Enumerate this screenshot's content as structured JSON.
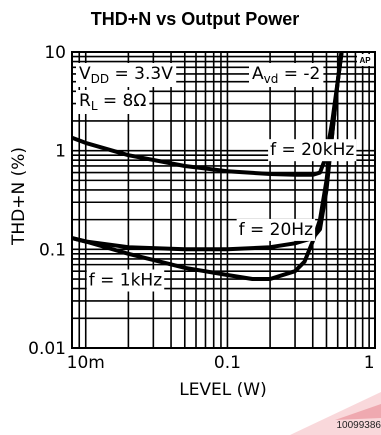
{
  "chart_data": {
    "type": "line",
    "title": "THD+N vs Output Power",
    "xlabel": "LEVEL (W)",
    "ylabel": "THD+N (%)",
    "x_scale": "log",
    "y_scale": "log",
    "xlim": [
      0.008,
      1.1
    ],
    "ylim": [
      0.01,
      10
    ],
    "x_ticks": [
      {
        "value": 0.01,
        "label": "10m"
      },
      {
        "value": 0.1,
        "label": "0.1"
      },
      {
        "value": 1,
        "label": "1"
      }
    ],
    "y_ticks": [
      {
        "value": 10,
        "label": "10"
      },
      {
        "value": 1,
        "label": "1"
      },
      {
        "value": 0.1,
        "label": "0.1"
      },
      {
        "value": 0.01,
        "label": "0.01"
      }
    ],
    "grid": true,
    "annotations": {
      "vdd": {
        "main": "V",
        "sub": "DD",
        "rest": " = 3.3V"
      },
      "avd": {
        "main": "A",
        "sub": "vd",
        "rest": " = -2"
      },
      "rl": {
        "main": "R",
        "sub": "L",
        "rest": " = 8Ω"
      }
    },
    "series": [
      {
        "name": "f = 20kHz",
        "x": [
          0.008,
          0.01,
          0.02,
          0.05,
          0.1,
          0.2,
          0.3,
          0.4,
          0.45,
          0.5,
          0.55,
          0.6,
          0.65
        ],
        "y": [
          1.35,
          1.2,
          0.9,
          0.7,
          0.62,
          0.58,
          0.57,
          0.57,
          0.6,
          0.9,
          2.0,
          5.0,
          12
        ]
      },
      {
        "name": "f = 20Hz",
        "x": [
          0.008,
          0.01,
          0.02,
          0.05,
          0.1,
          0.2,
          0.3,
          0.4,
          0.45,
          0.5,
          0.55,
          0.6,
          0.65
        ],
        "y": [
          0.13,
          0.12,
          0.105,
          0.1,
          0.1,
          0.105,
          0.115,
          0.13,
          0.16,
          0.4,
          1.5,
          5.0,
          12
        ]
      },
      {
        "name": "f = 1kHz",
        "x": [
          0.008,
          0.01,
          0.02,
          0.05,
          0.1,
          0.15,
          0.2,
          0.3,
          0.35,
          0.4,
          0.45,
          0.5,
          0.55,
          0.6,
          0.65
        ],
        "y": [
          0.13,
          0.12,
          0.09,
          0.065,
          0.055,
          0.05,
          0.05,
          0.06,
          0.075,
          0.12,
          0.2,
          0.5,
          1.5,
          5.0,
          12
        ]
      }
    ],
    "curve_labels": [
      {
        "series": "f = 20kHz",
        "x": 0.2,
        "y": 0.9
      },
      {
        "series": "f = 20Hz",
        "x": 0.12,
        "y": 0.14
      },
      {
        "series": "f = 1kHz",
        "x": 0.0105,
        "y": 0.043
      }
    ],
    "logo": "AP",
    "watermark": "10099386"
  }
}
